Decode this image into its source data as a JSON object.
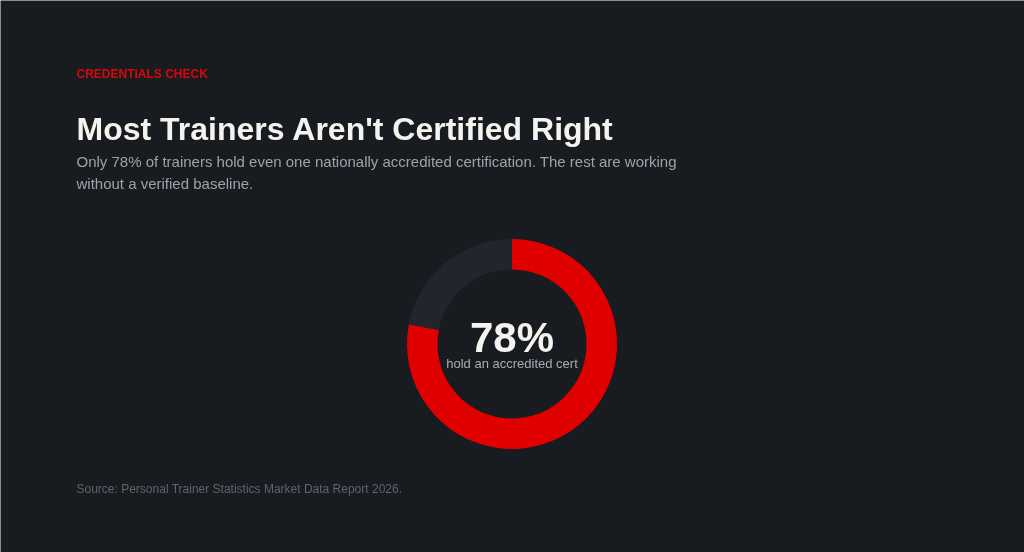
{
  "chart_data": {
    "type": "donut",
    "title": "Most Trainers Aren't Certified Right",
    "subtitle": "Only 78% of trainers hold even one nationally accredited certification. The rest are working without a verified baseline.",
    "categories": [
      null,
      null
    ],
    "values": [
      78,
      22
    ],
    "colors": [
      "#e00000",
      "#22252c"
    ],
    "annotations": [
      "CREDENTIALS CHECK",
      "78%",
      "hold an accredited cert",
      "Source: Personal Trainer Statistics Market Data Report 2026."
    ]
  }
}
